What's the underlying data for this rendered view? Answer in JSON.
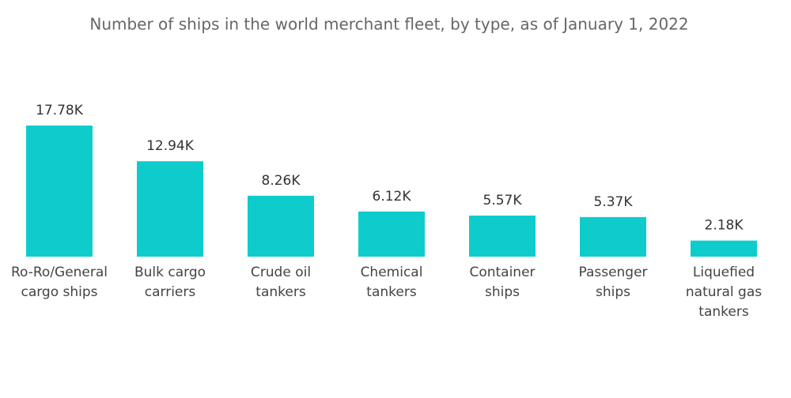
{
  "chart_data": {
    "type": "bar",
    "title": "Number of ships in the world merchant fleet, by type, as of January 1, 2022",
    "categories": [
      "Ro-Ro/General\ncargo ships",
      "Bulk cargo\ncarriers",
      "Crude oil\ntankers",
      "Chemical\ntankers",
      "Container\nships",
      "Passenger\nships",
      "Liquefied\nnatural gas\ntankers"
    ],
    "values": [
      17780,
      12940,
      8260,
      6120,
      5570,
      5370,
      2180
    ],
    "value_labels": [
      "17.78K",
      "12.94K",
      "8.26K",
      "6.12K",
      "5.57K",
      "5.37K",
      "2.18K"
    ],
    "color": "#0fcccc"
  }
}
